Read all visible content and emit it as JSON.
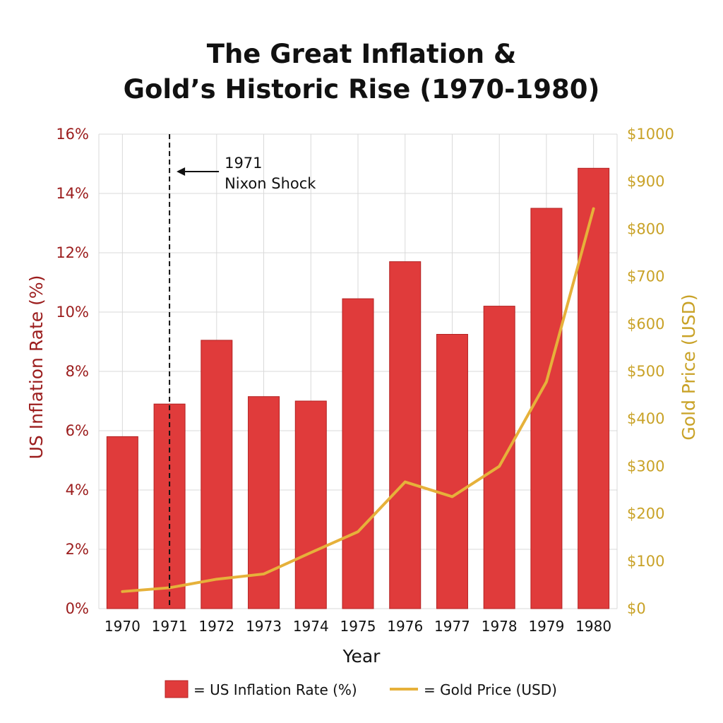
{
  "title": {
    "line1": "The Great Inflation &",
    "line2": "Gold’s Historic Rise (1970-1980)"
  },
  "chart_data": {
    "type": "bar",
    "categories": [
      "1970",
      "1971",
      "1972",
      "1973",
      "1974",
      "1975",
      "1976",
      "1977",
      "1978",
      "1979",
      "1980"
    ],
    "series": [
      {
        "name": "US Inflation Rate (%)",
        "kind": "bar",
        "axis": "left",
        "color": "#e03b3b",
        "values": [
          5.8,
          6.9,
          9.05,
          7.15,
          7.0,
          10.45,
          11.7,
          9.25,
          10.2,
          13.5,
          14.85
        ]
      },
      {
        "name": "Gold Price (USD)",
        "kind": "line",
        "axis": "right",
        "color": "#e6b13a",
        "values": [
          36,
          44,
          62,
          73,
          118,
          162,
          267,
          236,
          300,
          478,
          843
        ]
      }
    ],
    "xlabel": "Year",
    "ylabel": "US Inflation Rate (%)",
    "y2label": "Gold Price (USD)",
    "ylim": [
      0,
      16
    ],
    "y2lim": [
      0,
      1000
    ],
    "yticks": [
      "0%",
      "2%",
      "4%",
      "6%",
      "8%",
      "10%",
      "12%",
      "14%",
      "16%"
    ],
    "y2ticks": [
      "$0",
      "$100",
      "$200",
      "$300",
      "$400",
      "$500",
      "$600",
      "$700",
      "$800",
      "$900",
      "$1000"
    ],
    "grid": true,
    "annotation": {
      "x": "1971",
      "line1": "1971",
      "line2": "Nixon Shock"
    },
    "legend": {
      "placement": "bottom",
      "bar_label": "= US Inflation Rate (%)",
      "line_label": "= Gold Price (USD)"
    },
    "colors": {
      "left_axis": "#9b1c1c",
      "right_axis": "#c9a227",
      "grid": "#d9d9d9"
    }
  }
}
